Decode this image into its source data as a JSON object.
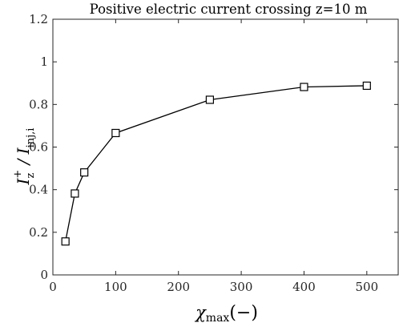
{
  "chart_data": {
    "type": "line",
    "title": "Positive electric current crossing z=10 m",
    "xlabel": {
      "symbol": "χ",
      "sub": "max",
      "unit": "(−)"
    },
    "ylabel": {
      "symbol": "I",
      "sup": "+",
      "sub": "z",
      "sep": " / ",
      "symbol2": "I",
      "sub2": "inj,i"
    },
    "xlim": [
      0,
      550
    ],
    "ylim": [
      0,
      1.2
    ],
    "xticks": [
      0,
      100,
      200,
      300,
      400,
      500
    ],
    "yticks": [
      0,
      0.2,
      0.4,
      0.6,
      0.8,
      1,
      1.2
    ],
    "xtick_labels": [
      "0",
      "100",
      "200",
      "300",
      "400",
      "500"
    ],
    "ytick_labels": [
      "0",
      "0.2",
      "0.4",
      "0.6",
      "0.8",
      "1",
      "1.2"
    ],
    "grid": false,
    "marker": "square",
    "series": [
      {
        "x": [
          20,
          35,
          50,
          100,
          250,
          400,
          500
        ],
        "y": [
          0.157,
          0.382,
          0.481,
          0.666,
          0.822,
          0.882,
          0.888
        ]
      }
    ]
  }
}
